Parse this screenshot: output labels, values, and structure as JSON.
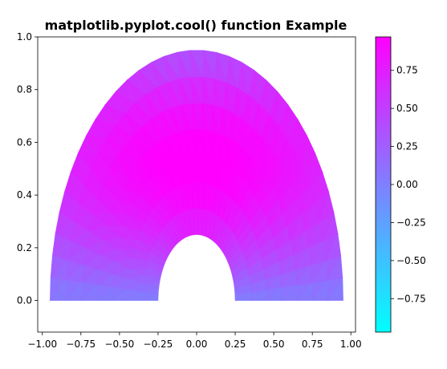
{
  "chart_data": {
    "type": "heatmap",
    "title": "matplotlib.pyplot.cool() function Example",
    "colormap": "cool",
    "colormap_colors": [
      "#00ffff",
      "#ff00ff"
    ],
    "xlim": [
      -1.03,
      1.03
    ],
    "ylim": [
      -0.12,
      1.0
    ],
    "xticks": [
      -1.0,
      -0.75,
      -0.5,
      -0.25,
      0.0,
      0.25,
      0.5,
      0.75,
      1.0
    ],
    "xtick_labels": [
      "−1.00",
      "−0.75",
      "−0.50",
      "−0.25",
      "0.00",
      "0.25",
      "0.50",
      "0.75",
      "1.00"
    ],
    "yticks": [
      0.0,
      0.2,
      0.4,
      0.6,
      0.8,
      1.0
    ],
    "ytick_labels": [
      "0.0",
      "0.2",
      "0.4",
      "0.6",
      "0.8",
      "1.0"
    ],
    "colorbar": {
      "range": [
        -0.97,
        0.97
      ],
      "ticks": [
        -0.75,
        -0.5,
        -0.25,
        0.0,
        0.25,
        0.5,
        0.75
      ],
      "tick_labels": [
        "−0.75",
        "−0.50",
        "−0.25",
        "0.00",
        "0.25",
        "0.50",
        "0.75"
      ]
    },
    "mesh": {
      "n_radii": 8,
      "n_angles": 36,
      "radius_min": 0.25,
      "radius_max": 0.95,
      "field": "cos(x) * sin(3y)"
    }
  }
}
